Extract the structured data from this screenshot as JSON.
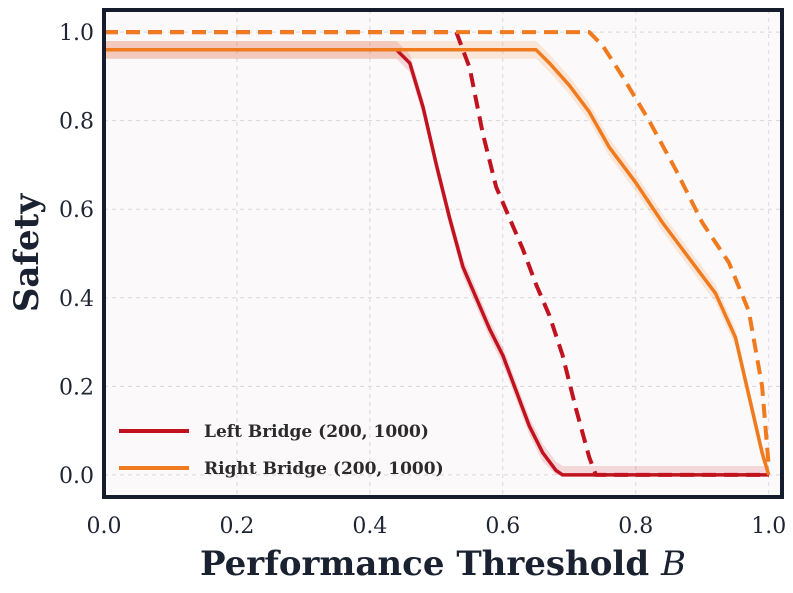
{
  "chart_data": {
    "type": "line",
    "xlabel": "Performance Threshold",
    "xlabel_var": "B",
    "ylabel": "Safety",
    "xlim": [
      0.0,
      1.02
    ],
    "ylim": [
      -0.05,
      1.05
    ],
    "xticks": [
      "0.0",
      "0.2",
      "0.4",
      "0.6",
      "0.8",
      "1.0"
    ],
    "yticks": [
      "0.0",
      "0.2",
      "0.4",
      "0.6",
      "0.8",
      "1.0"
    ],
    "grid": true,
    "legend_position": "lower-left",
    "colors": {
      "left": "#c1121f",
      "right": "#f07a1e",
      "plot_bg": "#fcf9fa",
      "frame": "#151c2c"
    },
    "series": [
      {
        "name": "Left Bridge (200, 1000)",
        "color": "#c1121f",
        "style": "solid",
        "band": 0.02,
        "x": [
          0.0,
          0.44,
          0.46,
          0.48,
          0.5,
          0.52,
          0.54,
          0.56,
          0.58,
          0.6,
          0.62,
          0.64,
          0.66,
          0.68,
          0.69,
          1.0
        ],
        "y": [
          0.96,
          0.96,
          0.93,
          0.83,
          0.7,
          0.58,
          0.47,
          0.4,
          0.33,
          0.27,
          0.19,
          0.11,
          0.05,
          0.01,
          0.0,
          0.0
        ]
      },
      {
        "name": "Left Bridge (200, 1000) bound",
        "color": "#c1121f",
        "style": "dashed",
        "x": [
          0.0,
          0.53,
          0.55,
          0.57,
          0.59,
          0.61,
          0.63,
          0.65,
          0.67,
          0.69,
          0.71,
          0.73,
          0.74,
          1.0
        ],
        "y": [
          1.0,
          1.0,
          0.92,
          0.77,
          0.65,
          0.58,
          0.51,
          0.43,
          0.36,
          0.27,
          0.15,
          0.04,
          0.0,
          0.0
        ]
      },
      {
        "name": "Right Bridge (200, 1000)",
        "color": "#f07a1e",
        "style": "solid",
        "band": 0.02,
        "x": [
          0.0,
          0.65,
          0.67,
          0.7,
          0.73,
          0.76,
          0.8,
          0.84,
          0.88,
          0.92,
          0.95,
          0.97,
          0.99,
          1.0
        ],
        "y": [
          0.96,
          0.96,
          0.93,
          0.88,
          0.82,
          0.74,
          0.66,
          0.57,
          0.49,
          0.41,
          0.31,
          0.18,
          0.05,
          0.0
        ]
      },
      {
        "name": "Right Bridge (200, 1000) bound",
        "color": "#f07a1e",
        "style": "dashed",
        "x": [
          0.0,
          0.73,
          0.75,
          0.78,
          0.82,
          0.86,
          0.9,
          0.94,
          0.97,
          0.99,
          1.0
        ],
        "y": [
          1.0,
          1.0,
          0.97,
          0.9,
          0.8,
          0.69,
          0.57,
          0.48,
          0.37,
          0.2,
          0.02
        ]
      }
    ],
    "legend": [
      {
        "label": "Left Bridge (200, 1000)",
        "color": "#c1121f"
      },
      {
        "label": "Right Bridge (200, 1000)",
        "color": "#f07a1e"
      }
    ]
  }
}
